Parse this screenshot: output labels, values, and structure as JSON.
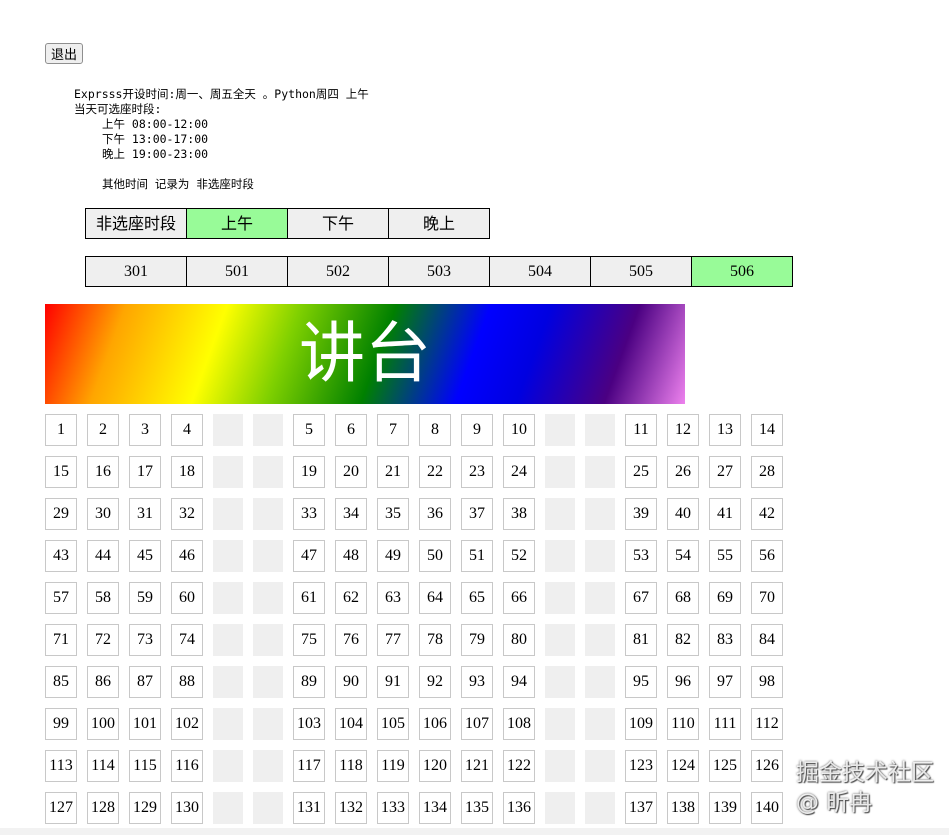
{
  "exit_label": "退出",
  "info": {
    "line1": "Exprsss开设时间:周一、周五全天 。Python周四 上午",
    "line2": "当天可选座时段:",
    "slots": [
      "上午 08:00-12:00",
      "下午 13:00-17:00",
      "晚上 19:00-23:00"
    ],
    "note": "其他时间 记录为 非选座时段"
  },
  "periods": [
    {
      "label": "非选座时段",
      "active": false
    },
    {
      "label": "上午",
      "active": true
    },
    {
      "label": "下午",
      "active": false
    },
    {
      "label": "晚上",
      "active": false
    }
  ],
  "rooms": [
    {
      "label": "301",
      "active": false
    },
    {
      "label": "501",
      "active": false
    },
    {
      "label": "502",
      "active": false
    },
    {
      "label": "503",
      "active": false
    },
    {
      "label": "504",
      "active": false
    },
    {
      "label": "505",
      "active": false
    },
    {
      "label": "506",
      "active": true
    }
  ],
  "active_color": "#98fb98",
  "podium_label": "讲台",
  "seat_rows": [
    [
      1,
      2,
      3,
      4,
      5,
      6,
      7,
      8,
      9,
      10,
      11,
      12,
      13,
      14
    ],
    [
      15,
      16,
      17,
      18,
      19,
      20,
      21,
      22,
      23,
      24,
      25,
      26,
      27,
      28
    ],
    [
      29,
      30,
      31,
      32,
      33,
      34,
      35,
      36,
      37,
      38,
      39,
      40,
      41,
      42
    ],
    [
      43,
      44,
      45,
      46,
      47,
      48,
      49,
      50,
      51,
      52,
      53,
      54,
      55,
      56
    ],
    [
      57,
      58,
      59,
      60,
      61,
      62,
      63,
      64,
      65,
      66,
      67,
      68,
      69,
      70
    ],
    [
      71,
      72,
      73,
      74,
      75,
      76,
      77,
      78,
      79,
      80,
      81,
      82,
      83,
      84
    ],
    [
      85,
      86,
      87,
      88,
      89,
      90,
      91,
      92,
      93,
      94,
      95,
      96,
      97,
      98
    ],
    [
      99,
      100,
      101,
      102,
      103,
      104,
      105,
      106,
      107,
      108,
      109,
      110,
      111,
      112
    ],
    [
      113,
      114,
      115,
      116,
      117,
      118,
      119,
      120,
      121,
      122,
      123,
      124,
      125,
      126
    ],
    [
      127,
      128,
      129,
      130,
      131,
      132,
      133,
      134,
      135,
      136,
      137,
      138,
      139,
      140
    ]
  ],
  "watermark": "掘金技术社区 @ 昕冉"
}
